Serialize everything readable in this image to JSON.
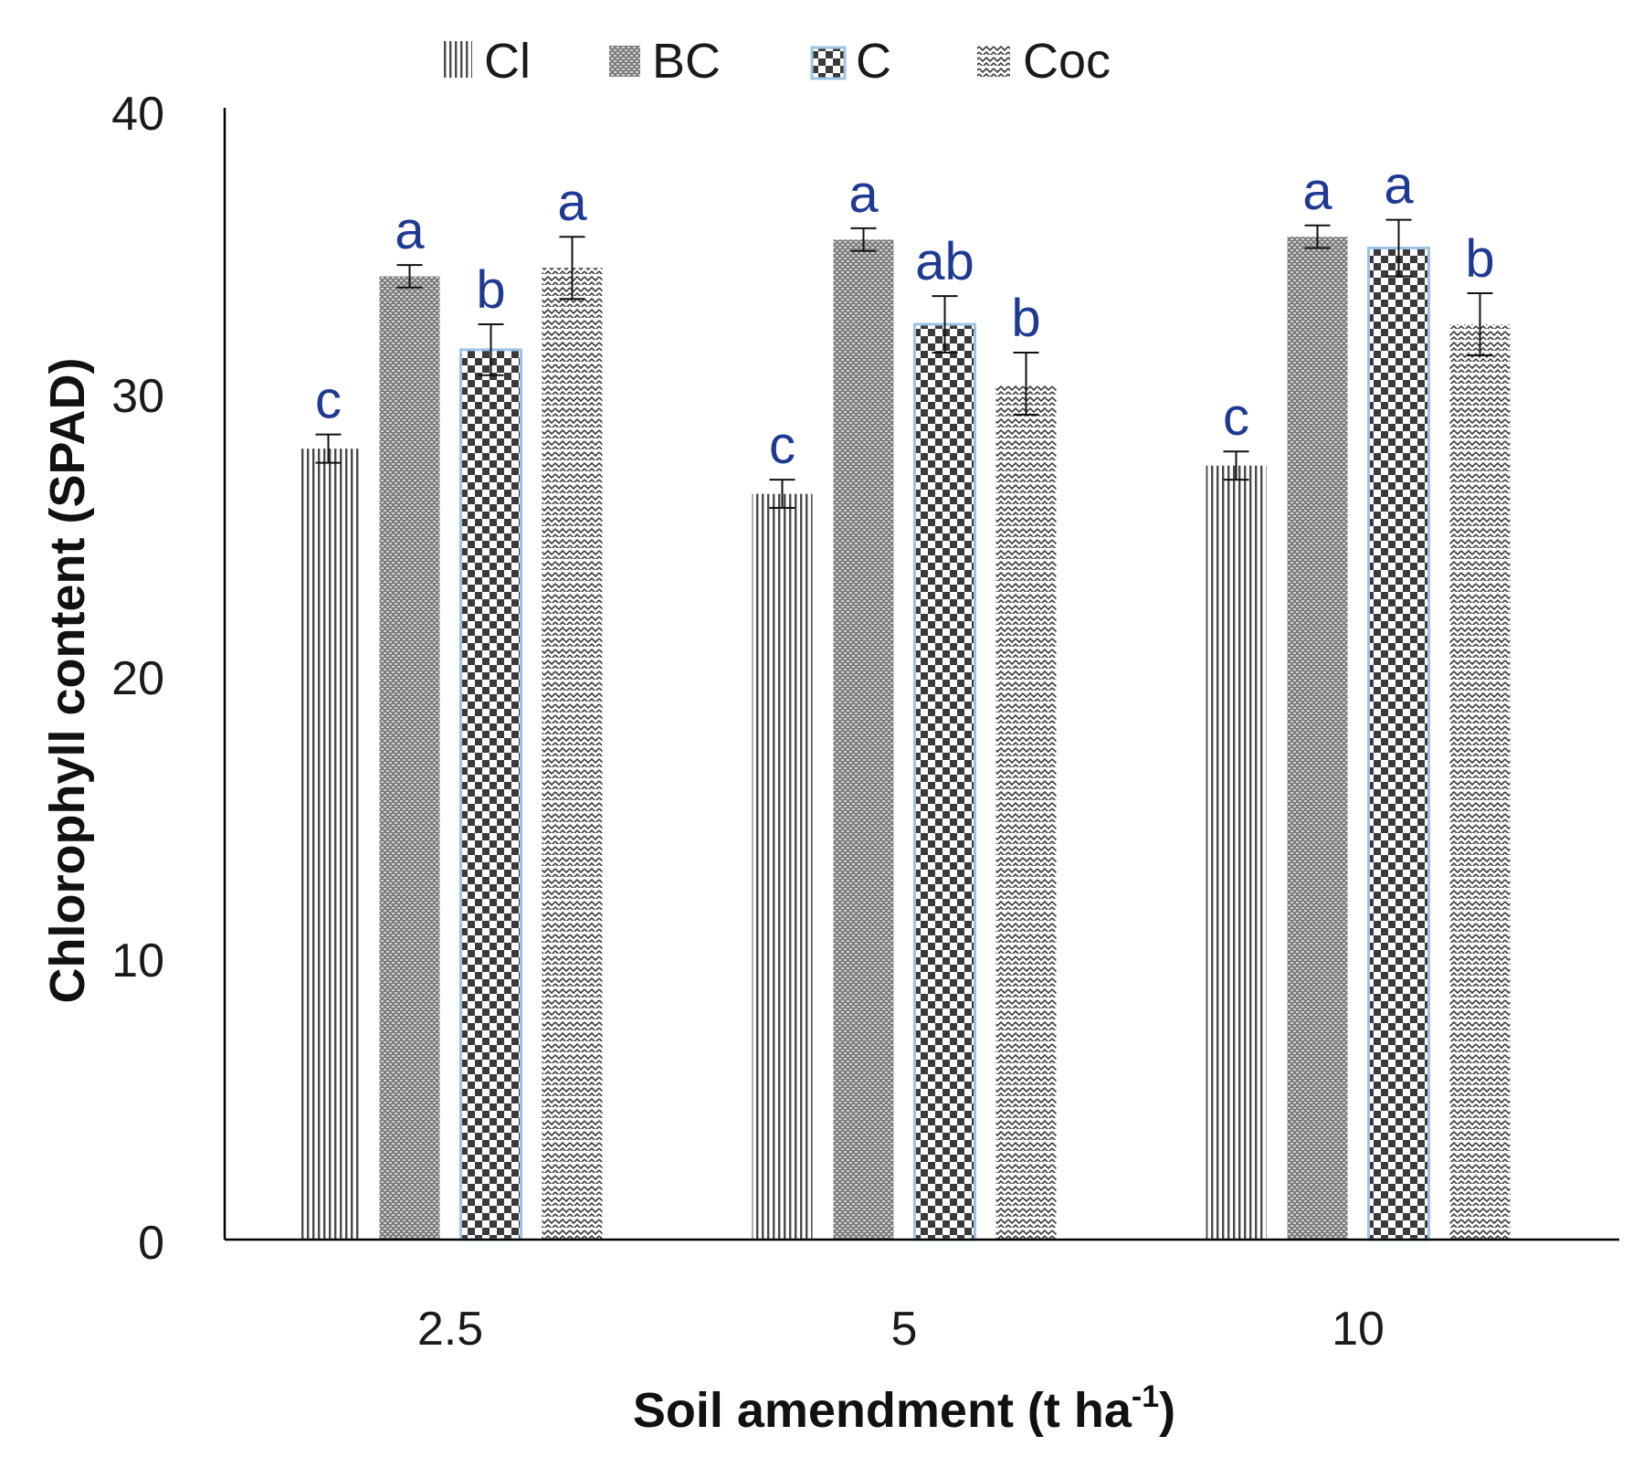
{
  "chart_data": {
    "type": "bar",
    "xlabel": "Soil amendment (t ha",
    "xlabel_sup": "-1",
    "xlabel_end": ")",
    "ylabel": "Chlorophyll content (SPAD)",
    "categories": [
      "2.5",
      "5",
      "10"
    ],
    "ylim": [
      0,
      40
    ],
    "yticks": [
      "0",
      "10",
      "20",
      "30",
      "40"
    ],
    "grid": false,
    "legend_position": "top",
    "series": [
      {
        "name": "Cl",
        "pattern": "vertical-lines",
        "values": [
          28.0,
          26.4,
          27.4
        ],
        "errors": [
          0.5,
          0.5,
          0.5
        ],
        "labels": [
          "c",
          "c",
          "c"
        ]
      },
      {
        "name": "BC",
        "pattern": "dense-grid",
        "values": [
          34.1,
          35.4,
          35.5
        ],
        "errors": [
          0.4,
          0.4,
          0.4
        ],
        "labels": [
          "a",
          "a",
          "a"
        ]
      },
      {
        "name": "C",
        "pattern": "checker",
        "values": [
          31.5,
          32.4,
          35.1
        ],
        "errors": [
          0.9,
          1.0,
          1.0
        ],
        "labels": [
          "b",
          "ab",
          "a"
        ]
      },
      {
        "name": "Coc",
        "pattern": "zigzag",
        "values": [
          34.4,
          30.3,
          32.4
        ],
        "errors": [
          1.1,
          1.1,
          1.1
        ],
        "labels": [
          "a",
          "b",
          "b"
        ]
      }
    ],
    "colors": {
      "bar_pattern": "#3a3a3a",
      "c_outline": "#9cc3e6",
      "sig_label": "#1f3a93",
      "axis": "#000000"
    }
  }
}
